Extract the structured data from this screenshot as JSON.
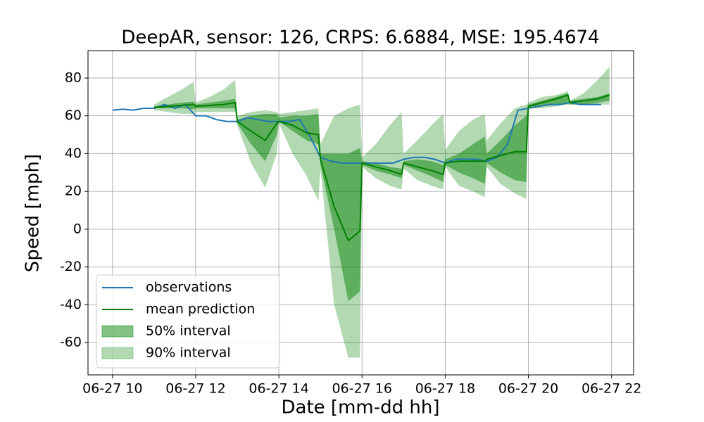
{
  "chart_data": {
    "type": "line",
    "title": "DeepAR, sensor: 126, CRPS: 6.6884, MSE: 195.4674",
    "xlabel": "Date [mm-dd hh]",
    "ylabel": "Speed [mph]",
    "xlim": [
      9.41,
      22.53
    ],
    "ylim": [
      -77.1,
      94.5
    ],
    "xticks": [
      {
        "value": 10,
        "label": "06-27 10"
      },
      {
        "value": 12,
        "label": "06-27 12"
      },
      {
        "value": 14,
        "label": "06-27 14"
      },
      {
        "value": 16,
        "label": "06-27 16"
      },
      {
        "value": 18,
        "label": "06-27 18"
      },
      {
        "value": 20,
        "label": "06-27 20"
      },
      {
        "value": 22,
        "label": "06-27 22"
      }
    ],
    "yticks": [
      -60,
      -40,
      -20,
      0,
      20,
      40,
      60,
      80
    ],
    "grid": true,
    "legend": "lower left",
    "x": [
      11,
      11.33,
      11.67,
      11.95,
      12,
      12.33,
      12.67,
      12.95,
      13,
      13.33,
      13.67,
      13.95,
      14,
      14.33,
      14.67,
      14.95,
      15,
      15.33,
      15.67,
      15.95,
      16,
      16.33,
      16.67,
      16.95,
      17,
      17.33,
      17.67,
      17.95,
      18,
      18.33,
      18.67,
      18.95,
      19,
      19.33,
      19.67,
      19.95,
      20,
      20.33,
      20.67,
      20.95,
      21,
      21.33,
      21.67,
      21.95
    ],
    "series": [
      {
        "name": "observations",
        "color": "#1f77b4",
        "x": [
          10,
          10.25,
          10.5,
          10.75,
          11,
          11.25,
          11.5,
          11.75,
          12,
          12.25,
          12.5,
          12.75,
          13,
          13.25,
          13.5,
          13.75,
          14,
          14.25,
          14.5,
          14.75,
          15,
          15.25,
          15.5,
          15.75,
          16,
          16.25,
          16.5,
          16.75,
          17,
          17.25,
          17.5,
          17.75,
          18,
          18.25,
          18.5,
          18.75,
          19,
          19.25,
          19.5,
          19.75,
          20,
          20.25,
          20.5,
          20.75,
          21,
          21.25,
          21.5,
          21.75
        ],
        "values": [
          63,
          63.5,
          63,
          64,
          64,
          66,
          64,
          66,
          60,
          60,
          58,
          57,
          57,
          59,
          58,
          57,
          57,
          57,
          58,
          49,
          38,
          36,
          35,
          35,
          35,
          35,
          35,
          35,
          37,
          38,
          38,
          37,
          35,
          37,
          37,
          37,
          36,
          38,
          45,
          63,
          64,
          65,
          66,
          66,
          67,
          66,
          66,
          66
        ]
      },
      {
        "name": "mean prediction",
        "color": "#008000",
        "values": [
          64.5,
          65,
          65.5,
          66,
          65,
          65.5,
          66,
          67,
          57,
          52,
          47,
          56,
          57,
          55,
          51,
          50,
          37,
          12,
          -6,
          -1,
          35,
          33,
          31,
          29,
          35,
          33,
          31,
          29,
          35,
          36,
          36,
          36,
          37,
          39,
          41,
          41,
          65,
          67,
          69,
          71,
          67,
          68,
          69,
          71
        ]
      }
    ],
    "intervals": [
      {
        "name": "90% interval",
        "color": "#0080004d",
        "lower": [
          63,
          62,
          61,
          61,
          62,
          62,
          62,
          62,
          55,
          35,
          22,
          40,
          56,
          40,
          28,
          15,
          32,
          -40,
          -68,
          -68,
          33,
          27,
          23,
          21,
          32,
          26,
          23,
          21,
          33,
          23,
          20,
          17,
          33,
          24,
          19,
          16,
          64,
          64,
          65,
          66,
          66,
          66,
          66,
          66
        ],
        "upper": [
          66,
          70,
          74,
          78,
          67,
          70,
          74,
          79,
          60,
          62,
          63,
          62,
          61,
          62,
          63,
          64,
          45,
          60,
          64,
          66,
          38,
          45,
          55,
          62,
          40,
          47,
          55,
          61,
          42,
          52,
          58,
          61,
          47,
          56,
          64,
          66,
          67,
          70,
          71,
          73,
          68,
          72,
          79,
          86
        ]
      },
      {
        "name": "50% interval",
        "color": "#0080007a",
        "lower": [
          64,
          64,
          64,
          63.5,
          64,
          64,
          64,
          64,
          56,
          45,
          36,
          50,
          57,
          52,
          47,
          45,
          34,
          0,
          -38,
          -33,
          34,
          31,
          29,
          27,
          34,
          31,
          28,
          25,
          34,
          30,
          27,
          24,
          35,
          30,
          26,
          25,
          64,
          65,
          66,
          67,
          66,
          66,
          67,
          68
        ],
        "upper": [
          65,
          66,
          67,
          67.5,
          66,
          67,
          68,
          69,
          58,
          60,
          61,
          61,
          59,
          60,
          60,
          61,
          40,
          40,
          40,
          43,
          36,
          35,
          33,
          32,
          36,
          37,
          36,
          34,
          37,
          40,
          45,
          49,
          40,
          47,
          55,
          60,
          66,
          68,
          70,
          72,
          68,
          69,
          70,
          72
        ]
      }
    ]
  }
}
